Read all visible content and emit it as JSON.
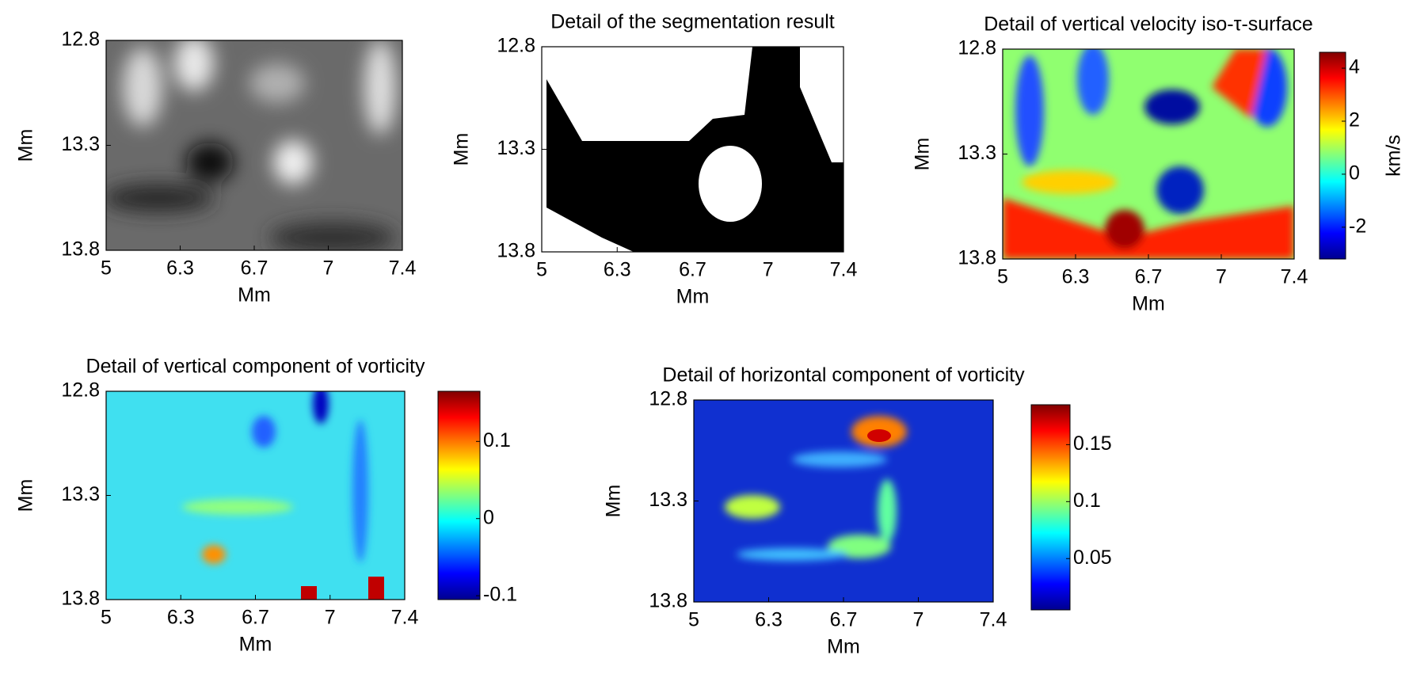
{
  "chart_data": [
    {
      "type": "heatmap",
      "colormap": "gray",
      "xlabel": "Mm",
      "ylabel": "Mm",
      "xticklabels": [
        "5",
        "6.3",
        "6.7",
        "7",
        "7.4"
      ],
      "yticklabels": [
        "12.8",
        "13.3",
        "13.8"
      ]
    },
    {
      "type": "heatmap",
      "colormap": "binary",
      "title": "Detail of the segmentation result",
      "xlabel": "Mm",
      "ylabel": "Mm",
      "xticklabels": [
        "5",
        "6.3",
        "6.7",
        "7",
        "7.4"
      ],
      "yticklabels": [
        "12.8",
        "13.3",
        "13.8"
      ]
    },
    {
      "type": "heatmap",
      "colormap": "jet",
      "title": "Detail of vertical velocity iso-τ-surface",
      "xlabel": "Mm",
      "ylabel": "Mm",
      "xticklabels": [
        "5",
        "6.3",
        "6.7",
        "7",
        "7.4"
      ],
      "yticklabels": [
        "12.8",
        "13.3",
        "13.8"
      ],
      "clim": [
        -3.2,
        4.6
      ],
      "cticks": [
        -2,
        0,
        2,
        4
      ],
      "clabel": "km/s"
    },
    {
      "type": "heatmap",
      "colormap": "jet",
      "title": "Detail of vertical component of vorticity",
      "xlabel": "Mm",
      "ylabel": "Mm",
      "xticklabels": [
        "5",
        "6.3",
        "6.7",
        "7",
        "7.4"
      ],
      "yticklabels": [
        "12.8",
        "13.3",
        "13.8"
      ],
      "clim": [
        -0.105,
        0.165
      ],
      "cticks": [
        -0.1,
        0,
        0.1
      ]
    },
    {
      "type": "heatmap",
      "colormap": "jet",
      "title": "Detail of horizontal component of vorticity",
      "xlabel": "Mm",
      "ylabel": "Mm",
      "xticklabels": [
        "5",
        "6.3",
        "6.7",
        "7",
        "7.4"
      ],
      "yticklabels": [
        "12.8",
        "13.3",
        "13.8"
      ],
      "clim": [
        0.005,
        0.185
      ],
      "cticks": [
        0.05,
        0.1,
        0.15
      ]
    }
  ]
}
